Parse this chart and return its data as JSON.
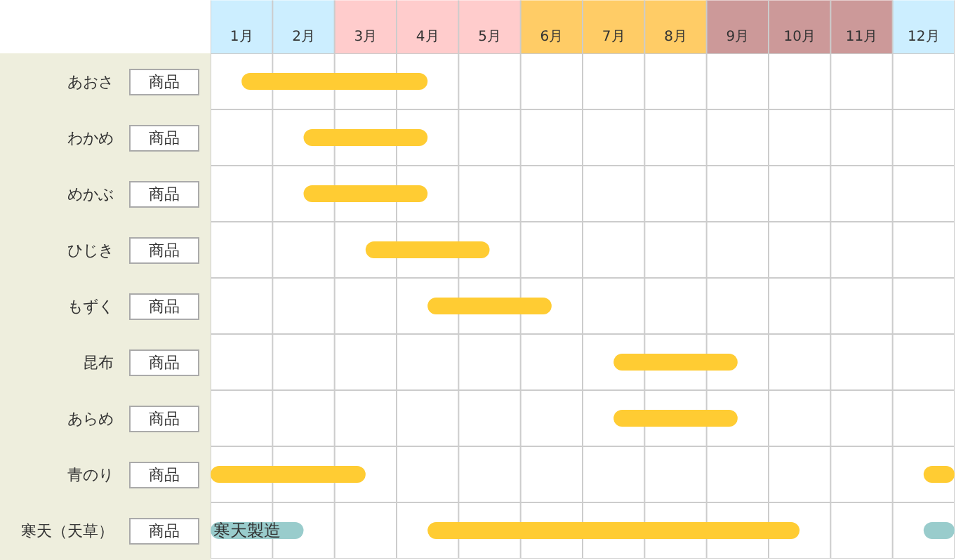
{
  "chart_data": {
    "type": "bar",
    "orientation": "horizontal",
    "categories": [
      "あおさ",
      "わかめ",
      "めかぶ",
      "ひじき",
      "もずく",
      "昆布",
      "あらめ",
      "青のり",
      "寒天（天草）"
    ],
    "series": [
      {
        "color": "#ffcc33",
        "base": [
          1,
          2,
          2,
          3,
          4,
          7,
          7,
          0.5,
          4
        ],
        "values": [
          3,
          2,
          2,
          2,
          2,
          2,
          2,
          2.5,
          6
        ]
      },
      {
        "color": "#ffcc33",
        "base": [
          null,
          null,
          null,
          null,
          null,
          null,
          null,
          12,
          null
        ],
        "values": [
          null,
          null,
          null,
          null,
          null,
          null,
          null,
          0.5,
          null
        ]
      },
      {
        "name": "寒天製造",
        "color": "#99cccc",
        "base": [
          null,
          null,
          null,
          null,
          null,
          null,
          null,
          null,
          0.5
        ],
        "values": [
          null,
          null,
          null,
          null,
          null,
          null,
          null,
          null,
          1.5
        ]
      },
      {
        "color": "#99cccc",
        "base": [
          null,
          null,
          null,
          null,
          null,
          null,
          null,
          null,
          12
        ],
        "values": [
          null,
          null,
          null,
          null,
          null,
          null,
          null,
          null,
          0.5
        ]
      }
    ],
    "xlim": [
      0.5,
      12.5
    ],
    "xticks": [
      {
        "value": 1,
        "label": "1月"
      },
      {
        "value": 2,
        "label": "2月"
      },
      {
        "value": 3,
        "label": "3月"
      },
      {
        "value": 4,
        "label": "4月"
      },
      {
        "value": 5,
        "label": "5月"
      },
      {
        "value": 6,
        "label": "6月"
      },
      {
        "value": 7,
        "label": "7月"
      },
      {
        "value": 8,
        "label": "8月"
      },
      {
        "value": 9,
        "label": "9月"
      },
      {
        "value": 10,
        "label": "10月"
      },
      {
        "value": 11,
        "label": "11月"
      },
      {
        "value": 12,
        "label": "12月"
      }
    ],
    "bands": [
      {
        "axis": "x",
        "from": 0.5,
        "to": 2.5,
        "color": "#cceeff"
      },
      {
        "axis": "x",
        "from": 2.5,
        "to": 5.5,
        "color": "#ffcccc"
      },
      {
        "axis": "x",
        "from": 5.5,
        "to": 8.5,
        "color": "#ffcc66"
      },
      {
        "axis": "x",
        "from": 8.5,
        "to": 11.5,
        "color": "#cc9999"
      },
      {
        "axis": "x",
        "from": 11.5,
        "to": 12.5,
        "color": "#cceeff"
      }
    ],
    "annotations": [
      "商品",
      "商品",
      "商品",
      "商品",
      "商品",
      "商品",
      "商品",
      "商品",
      "商品"
    ],
    "grid": true
  }
}
